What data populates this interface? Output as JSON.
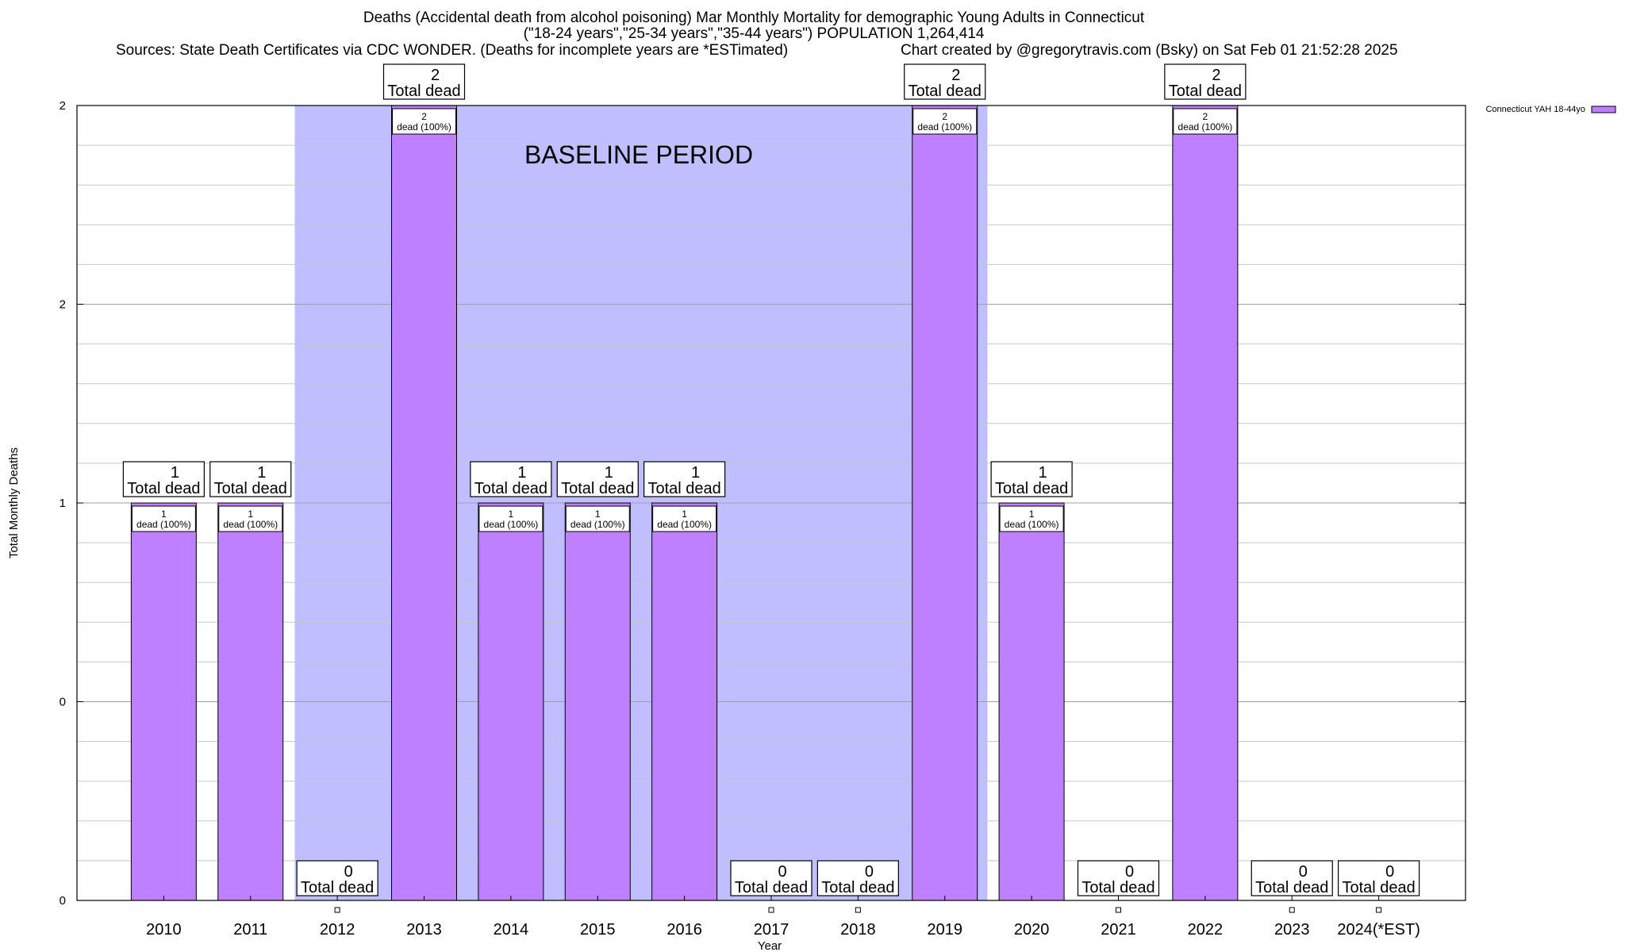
{
  "header": {
    "title_line1": "Deaths (Accidental death from alcohol poisoning) Mar Monthly Mortality for demographic Young Adults in Connecticut",
    "title_line2": "(\"18-24 years\",\"25-34 years\",\"35-44 years\") POPULATION 1,264,414",
    "sources": "Sources: State Death Certificates via CDC WONDER. (Deaths for incomplete years are *ESTimated)",
    "credit": "Chart created by @gregorytravis.com (Bsky) on Sat Feb 01 21:52:28 2025"
  },
  "colors": {
    "bar": "#bf80ff",
    "baseline_band": "#bfbfff",
    "grid": "#c8c8c8"
  },
  "chart_data": {
    "type": "bar",
    "title": "Deaths (Accidental death from alcohol poisoning) Mar Monthly Mortality for demographic Young Adults in Connecticut",
    "xlabel": "Year",
    "ylabel": "Total Monthly Deaths",
    "categories": [
      "2010",
      "2011",
      "2012",
      "2013",
      "2014",
      "2015",
      "2016",
      "2017",
      "2018",
      "2019",
      "2020",
      "2021",
      "2022",
      "2023",
      "2024(*EST)"
    ],
    "series": [
      {
        "name": "Connecticut YAH 18-44yo",
        "values": [
          1,
          1,
          0,
          2,
          1,
          1,
          1,
          0,
          0,
          2,
          1,
          0,
          2,
          0,
          0
        ]
      }
    ],
    "ylim": [
      0,
      2
    ],
    "yticks": [
      "0",
      "0",
      "1",
      "2",
      "2"
    ],
    "grid": true,
    "legend_position": "top-right",
    "annotation": "BASELINE PERIOD",
    "baseline_period": [
      "2012",
      "2019"
    ],
    "total_label_suffix": "Total dead",
    "bar_label_suffix": "dead (100%)"
  }
}
